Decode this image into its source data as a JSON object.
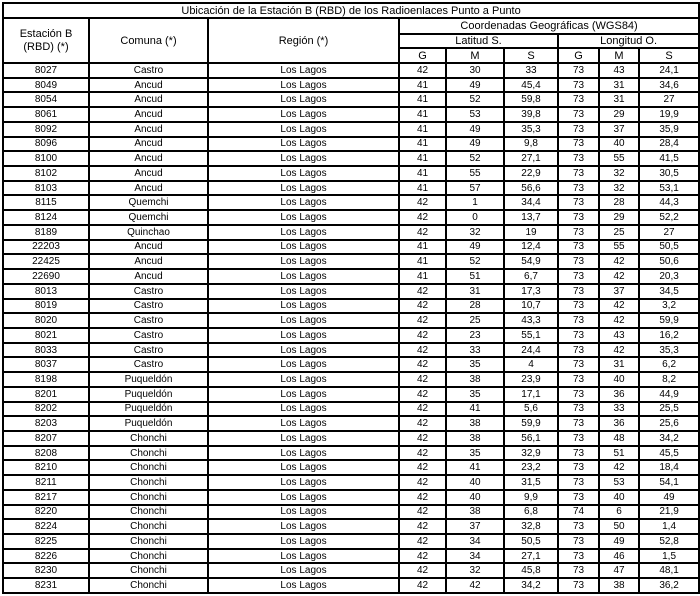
{
  "title": "Ubicación de la Estación B (RBD) de los Radioenlaces Punto a Punto",
  "table": {
    "headers": {
      "station": "Estación B (RBD) (*)",
      "comuna": "Comuna (*)",
      "region": "Región (*)",
      "coords_group": "Coordenadas Geográficas (WGS84)",
      "lat_group": "Latitud S.",
      "lon_group": "Longitud O.",
      "gms": [
        "G",
        "M",
        "S"
      ]
    },
    "rows": [
      [
        "8027",
        "Castro",
        "Los Lagos",
        "42",
        "30",
        "33",
        "73",
        "43",
        "24,1"
      ],
      [
        "8049",
        "Ancud",
        "Los Lagos",
        "41",
        "49",
        "45,4",
        "73",
        "31",
        "34,6"
      ],
      [
        "8054",
        "Ancud",
        "Los Lagos",
        "41",
        "52",
        "59,8",
        "73",
        "31",
        "27"
      ],
      [
        "8061",
        "Ancud",
        "Los Lagos",
        "41",
        "53",
        "39,8",
        "73",
        "29",
        "19,9"
      ],
      [
        "8092",
        "Ancud",
        "Los Lagos",
        "41",
        "49",
        "35,3",
        "73",
        "37",
        "35,9"
      ],
      [
        "8096",
        "Ancud",
        "Los Lagos",
        "41",
        "49",
        "9,8",
        "73",
        "40",
        "28,4"
      ],
      [
        "8100",
        "Ancud",
        "Los Lagos",
        "41",
        "52",
        "27,1",
        "73",
        "55",
        "41,5"
      ],
      [
        "8102",
        "Ancud",
        "Los Lagos",
        "41",
        "55",
        "22,9",
        "73",
        "32",
        "30,5"
      ],
      [
        "8103",
        "Ancud",
        "Los Lagos",
        "41",
        "57",
        "56,6",
        "73",
        "32",
        "53,1"
      ],
      [
        "8115",
        "Quemchi",
        "Los Lagos",
        "42",
        "1",
        "34,4",
        "73",
        "28",
        "44,3"
      ],
      [
        "8124",
        "Quemchi",
        "Los Lagos",
        "42",
        "0",
        "13,7",
        "73",
        "29",
        "52,2"
      ],
      [
        "8189",
        "Quinchao",
        "Los Lagos",
        "42",
        "32",
        "19",
        "73",
        "25",
        "27"
      ],
      [
        "22203",
        "Ancud",
        "Los Lagos",
        "41",
        "49",
        "12,4",
        "73",
        "55",
        "50,5"
      ],
      [
        "22425",
        "Ancud",
        "Los Lagos",
        "41",
        "52",
        "54,9",
        "73",
        "42",
        "50,6"
      ],
      [
        "22690",
        "Ancud",
        "Los Lagos",
        "41",
        "51",
        "6,7",
        "73",
        "42",
        "20,3"
      ],
      [
        "8013",
        "Castro",
        "Los Lagos",
        "42",
        "31",
        "17,3",
        "73",
        "37",
        "34,5"
      ],
      [
        "8019",
        "Castro",
        "Los Lagos",
        "42",
        "28",
        "10,7",
        "73",
        "42",
        "3,2"
      ],
      [
        "8020",
        "Castro",
        "Los Lagos",
        "42",
        "25",
        "43,3",
        "73",
        "42",
        "59,9"
      ],
      [
        "8021",
        "Castro",
        "Los Lagos",
        "42",
        "23",
        "55,1",
        "73",
        "43",
        "16,2"
      ],
      [
        "8033",
        "Castro",
        "Los Lagos",
        "42",
        "33",
        "24,4",
        "73",
        "42",
        "35,3"
      ],
      [
        "8037",
        "Castro",
        "Los Lagos",
        "42",
        "35",
        "4",
        "73",
        "31",
        "6,2"
      ],
      [
        "8198",
        "Puqueldón",
        "Los Lagos",
        "42",
        "38",
        "23,9",
        "73",
        "40",
        "8,2"
      ],
      [
        "8201",
        "Puqueldón",
        "Los Lagos",
        "42",
        "35",
        "17,1",
        "73",
        "36",
        "44,9"
      ],
      [
        "8202",
        "Puqueldón",
        "Los Lagos",
        "42",
        "41",
        "5,6",
        "73",
        "33",
        "25,5"
      ],
      [
        "8203",
        "Puqueldón",
        "Los Lagos",
        "42",
        "38",
        "59,9",
        "73",
        "36",
        "25,6"
      ],
      [
        "8207",
        "Chonchi",
        "Los Lagos",
        "42",
        "38",
        "56,1",
        "73",
        "48",
        "34,2"
      ],
      [
        "8208",
        "Chonchi",
        "Los Lagos",
        "42",
        "35",
        "32,9",
        "73",
        "51",
        "45,5"
      ],
      [
        "8210",
        "Chonchi",
        "Los Lagos",
        "42",
        "41",
        "23,2",
        "73",
        "42",
        "18,4"
      ],
      [
        "8211",
        "Chonchi",
        "Los Lagos",
        "42",
        "40",
        "31,5",
        "73",
        "53",
        "54,1"
      ],
      [
        "8217",
        "Chonchi",
        "Los Lagos",
        "42",
        "40",
        "9,9",
        "73",
        "40",
        "49"
      ],
      [
        "8220",
        "Chonchi",
        "Los Lagos",
        "42",
        "38",
        "6,8",
        "74",
        "6",
        "21,9"
      ],
      [
        "8224",
        "Chonchi",
        "Los Lagos",
        "42",
        "37",
        "32,8",
        "73",
        "50",
        "1,4"
      ],
      [
        "8225",
        "Chonchi",
        "Los Lagos",
        "42",
        "34",
        "50,5",
        "73",
        "49",
        "52,8"
      ],
      [
        "8226",
        "Chonchi",
        "Los Lagos",
        "42",
        "34",
        "27,1",
        "73",
        "46",
        "1,5"
      ],
      [
        "8230",
        "Chonchi",
        "Los Lagos",
        "42",
        "32",
        "45,8",
        "73",
        "47",
        "48,1"
      ],
      [
        "8231",
        "Chonchi",
        "Los Lagos",
        "42",
        "42",
        "34,2",
        "73",
        "38",
        "36,2"
      ]
    ]
  }
}
